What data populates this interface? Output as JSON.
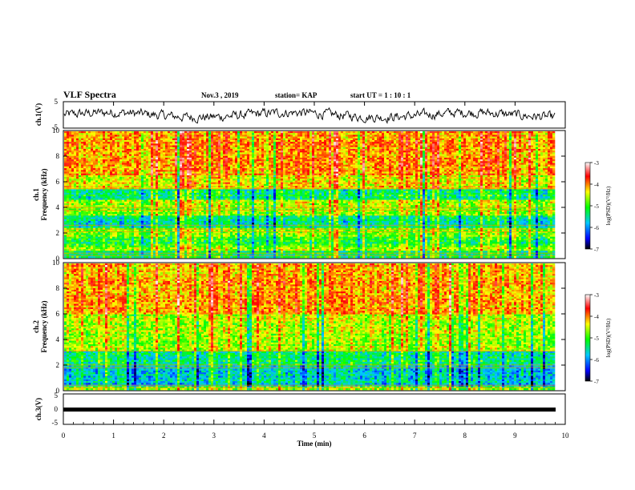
{
  "header": {
    "title": "VLF Spectra",
    "date": "Nov.3  , 2019",
    "station": "station= KAP",
    "start": "start  UT  =   1 : 10 : 1"
  },
  "chart_data": [
    {
      "type": "line",
      "panel": "ch1-waveform",
      "ylabel": "ch.1(V)",
      "ylim": [
        -5,
        5
      ],
      "yticks": [
        "5",
        "-5"
      ],
      "xlim": [
        0,
        10
      ],
      "description_color": "#000000"
    },
    {
      "type": "heatmap",
      "panel": "ch1-spectrogram",
      "ylabel": "ch.1\nFrequency (kHz)",
      "ylim": [
        0,
        10
      ],
      "yticks": [
        "0",
        "2",
        "4",
        "6",
        "8",
        "10"
      ],
      "xlim": [
        0,
        9.8
      ],
      "colorbar": {
        "label": "log(PSD)(V²/Hz)",
        "ticks": [
          "-3",
          "-4",
          "-5",
          "-6",
          "-7"
        ],
        "range": [
          -7,
          -3
        ]
      },
      "bands": [
        {
          "f0": 0,
          "f1": 0.5,
          "level": -5.6
        },
        {
          "f0": 0.5,
          "f1": 1.0,
          "level": -5.0
        },
        {
          "f0": 1.0,
          "f1": 1.6,
          "level": -5.3
        },
        {
          "f0": 1.6,
          "f1": 2.4,
          "level": -5.1
        },
        {
          "f0": 2.4,
          "f1": 3.4,
          "level": -5.7
        },
        {
          "f0": 3.4,
          "f1": 4.6,
          "level": -4.9
        },
        {
          "f0": 4.6,
          "f1": 5.4,
          "level": -5.6
        },
        {
          "f0": 5.4,
          "f1": 6.5,
          "level": -4.6
        },
        {
          "f0": 6.5,
          "f1": 10.0,
          "level": -4.3
        }
      ]
    },
    {
      "type": "heatmap",
      "panel": "ch2-spectrogram",
      "ylabel": "ch.2\nFrequency (kHz)",
      "ylim": [
        0,
        10
      ],
      "yticks": [
        "0",
        "2",
        "4",
        "6",
        "8",
        "10"
      ],
      "xlim": [
        0,
        9.8
      ],
      "colorbar": {
        "label": "log(PSD)(V²/Hz)",
        "ticks": [
          "-3",
          "-4",
          "-5",
          "-6",
          "-7"
        ],
        "range": [
          -7,
          -3
        ]
      },
      "bands": [
        {
          "f0": 0,
          "f1": 0.3,
          "level": -5.0
        },
        {
          "f0": 0.3,
          "f1": 1.9,
          "level": -5.9
        },
        {
          "f0": 1.9,
          "f1": 3.0,
          "level": -5.5
        },
        {
          "f0": 3.0,
          "f1": 6.0,
          "level": -4.8
        },
        {
          "f0": 6.0,
          "f1": 10.0,
          "level": -4.3
        }
      ]
    },
    {
      "type": "line",
      "panel": "ch3-waveform",
      "ylabel": "ch.3(V)",
      "ylim": [
        -5,
        5
      ],
      "yticks": [
        "5",
        "0",
        "-5"
      ],
      "xlim": [
        0,
        10
      ],
      "xlabel": "Time  (min)",
      "xticks": [
        "0",
        "1",
        "2",
        "3",
        "4",
        "5",
        "6",
        "7",
        "8",
        "9",
        "10"
      ],
      "constant_value": 0
    }
  ]
}
